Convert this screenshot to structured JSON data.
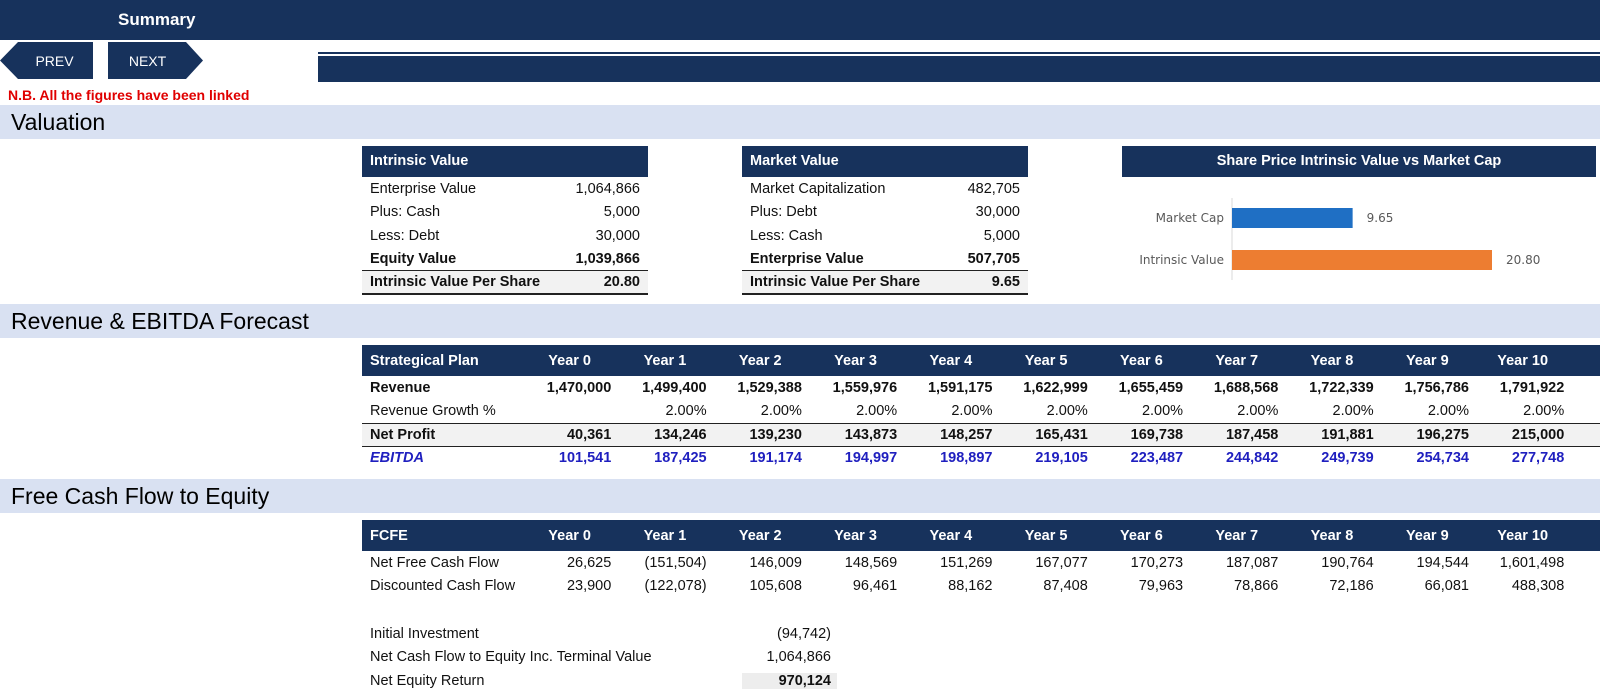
{
  "header": {
    "title": "Summary",
    "prev_label": "PREV",
    "next_label": "NEXT"
  },
  "note": "N.B. All the figures have been linked",
  "sections": {
    "valuation": "Valuation",
    "forecast": "Revenue & EBITDA Forecast",
    "fcfe": "Free Cash Flow to Equity"
  },
  "intrinsic": {
    "title": "Intrinsic Value",
    "rows": [
      {
        "label": "Enterprise Value",
        "value": "1,064,866"
      },
      {
        "label": "Plus: Cash",
        "value": "5,000"
      },
      {
        "label": "Less: Debt",
        "value": "30,000"
      },
      {
        "label": "Equity Value",
        "value": "1,039,866"
      },
      {
        "label": "Intrinsic Value Per Share",
        "value": "20.80"
      }
    ]
  },
  "market": {
    "title": "Market Value",
    "rows": [
      {
        "label": "Market Capitalization",
        "value": "482,705"
      },
      {
        "label": "Plus: Debt",
        "value": "30,000"
      },
      {
        "label": "Less: Cash",
        "value": "5,000"
      },
      {
        "label": "Enterprise Value",
        "value": "507,705"
      },
      {
        "label": "Intrinsic Value Per Share",
        "value": "9.65"
      }
    ]
  },
  "chart_data": {
    "type": "bar",
    "orientation": "horizontal",
    "title": "Share Price Intrinsic Value vs Market Cap",
    "categories": [
      "Market Cap",
      "Intrinsic Value"
    ],
    "values": [
      9.65,
      20.8
    ],
    "value_labels": [
      "9.65",
      "20.80"
    ],
    "colors": [
      "#1f6fc4",
      "#ed7d31"
    ],
    "xlim": [
      0,
      24
    ],
    "grid": false
  },
  "forecast": {
    "header_label": "Strategical Plan",
    "years": [
      "Year 0",
      "Year 1",
      "Year 2",
      "Year 3",
      "Year 4",
      "Year 5",
      "Year 6",
      "Year 7",
      "Year 8",
      "Year 9",
      "Year 10"
    ],
    "rows": [
      {
        "label": "Revenue",
        "values": [
          "1,470,000",
          "1,499,400",
          "1,529,388",
          "1,559,976",
          "1,591,175",
          "1,622,999",
          "1,655,459",
          "1,688,568",
          "1,722,339",
          "1,756,786",
          "1,791,922"
        ]
      },
      {
        "label": "Revenue Growth %",
        "values": [
          "",
          "2.00%",
          "2.00%",
          "2.00%",
          "2.00%",
          "2.00%",
          "2.00%",
          "2.00%",
          "2.00%",
          "2.00%",
          "2.00%"
        ]
      },
      {
        "label": "Net Profit",
        "values": [
          "40,361",
          "134,246",
          "139,230",
          "143,873",
          "148,257",
          "165,431",
          "169,738",
          "187,458",
          "191,881",
          "196,275",
          "215,000"
        ]
      },
      {
        "label": "EBITDA",
        "values": [
          "101,541",
          "187,425",
          "191,174",
          "194,997",
          "198,897",
          "219,105",
          "223,487",
          "244,842",
          "249,739",
          "254,734",
          "277,748"
        ]
      }
    ]
  },
  "fcfe": {
    "header_label": "FCFE",
    "years": [
      "Year 0",
      "Year 1",
      "Year 2",
      "Year 3",
      "Year 4",
      "Year 5",
      "Year 6",
      "Year 7",
      "Year 8",
      "Year 9",
      "Year 10"
    ],
    "rows": [
      {
        "label": "Net Free Cash Flow",
        "values": [
          "26,625",
          "(151,504)",
          "146,009",
          "148,569",
          "151,269",
          "167,077",
          "170,273",
          "187,087",
          "190,764",
          "194,544",
          "1,601,498"
        ]
      },
      {
        "label": "Discounted Cash Flow",
        "values": [
          "23,900",
          "(122,078)",
          "105,608",
          "96,461",
          "88,162",
          "87,408",
          "79,963",
          "78,866",
          "72,186",
          "66,081",
          "488,308"
        ]
      }
    ],
    "summary": [
      {
        "label": "Initial Investment",
        "value": "(94,742)"
      },
      {
        "label": "Net Cash Flow to Equity Inc. Terminal Value",
        "value": "1,064,866"
      },
      {
        "label": "Net Equity Return",
        "value": "970,124"
      }
    ]
  }
}
